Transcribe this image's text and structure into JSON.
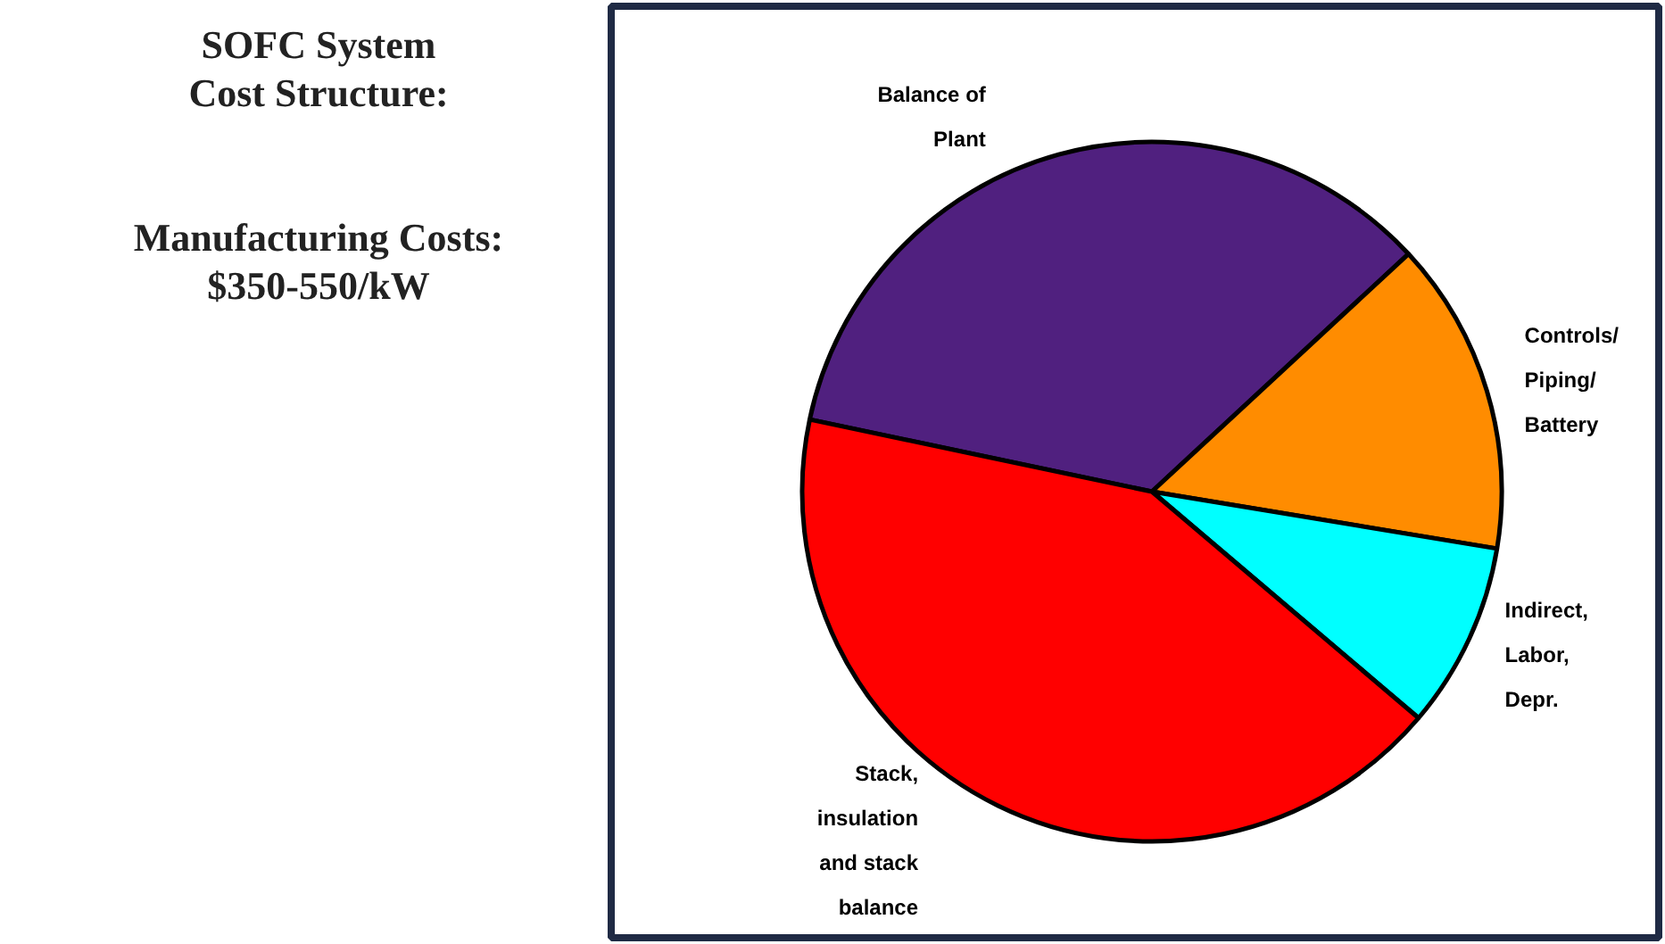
{
  "chart_data": {
    "type": "pie",
    "title": "SOFC System Cost Structure:",
    "subtitle": "Manufacturing Costs: $350-550/kW",
    "categories": [
      "Balance of Plant",
      "Controls/ Piping/ Battery",
      "Indirect, Labor, Depr.",
      "Stack, insulation and stack balance"
    ],
    "values": [
      34.8,
      14.5,
      8.6,
      42.1
    ],
    "colors": [
      "#50207f",
      "#ff8c00",
      "#00ffff",
      "#ff0000"
    ]
  }
}
